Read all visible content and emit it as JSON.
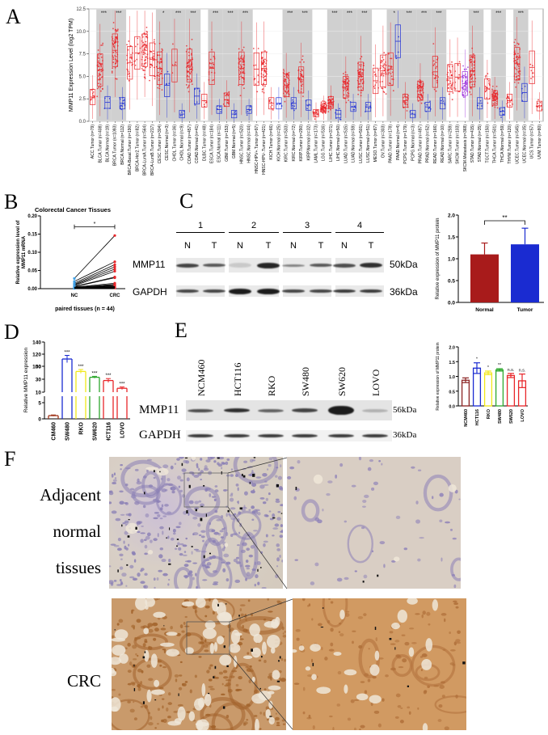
{
  "panel_labels": {
    "A": "A",
    "B": "B",
    "C": "C",
    "D": "D",
    "E": "E",
    "F": "F"
  },
  "chart_data": [
    {
      "id": "A",
      "type": "scatter",
      "title": "",
      "ylabel": "MMP11 Expression Level (log2 TPM)",
      "ylim": [
        0,
        12.5
      ],
      "yticks": [
        "0.0",
        "2.5",
        "5.0",
        "7.5",
        "10.0",
        "12.5"
      ],
      "colors": {
        "tumor": "#e8262a",
        "normal": "#1f2fd6",
        "metastasis": "#9b30d9",
        "shade": "#d0d0d0"
      },
      "categories": [
        "ACC.Tumor (n=79)",
        "BLCA.Tumor (n=408)",
        "BLCA.Normal (n=19)",
        "BRCA.Tumor (n=1093)",
        "BRCA.Normal (n=112)",
        "BRCA-Basal.Tumor (n=190)",
        "BRCA-Her2.Tumor (n=82)",
        "BRCA-LumA.Tumor (n=564)",
        "BRCA-LumB.Tumor (n=217)",
        "CESC.Tumor (n=304)",
        "CESC.Normal (n=3)",
        "CHOL.Tumor (n=36)",
        "CHOL.Normal (n=9)",
        "COAD.Tumor (n=457)",
        "COAD.Normal (n=41)",
        "DLBC.Tumor (n=48)",
        "ESCA.Tumor (n=184)",
        "ESCA.Normal (n=11)",
        "GBM.Tumor (n=153)",
        "GBM.Normal (n=5)",
        "HNSC.Tumor (n=520)",
        "HNSC.Normal (n=44)",
        "HNSC-HPV+.Tumor (n=97)",
        "HNSC-HPV-.Tumor (n=421)",
        "KICH.Tumor (n=66)",
        "KICH.Normal (n=25)",
        "KIRC.Tumor (n=533)",
        "KIRC.Normal (n=72)",
        "KIRP.Tumor (n=290)",
        "KIRP.Normal (n=32)",
        "LAML.Tumor (n=173)",
        "LGG.Tumor (n=516)",
        "LIHC.Tumor (n=371)",
        "LIHC.Normal (n=50)",
        "LUAD.Tumor (n=515)",
        "LUAD.Normal (n=59)",
        "LUSC.Tumor (n=501)",
        "LUSC.Normal (n=51)",
        "MESO.Tumor (n=87)",
        "OV.Tumor (n=303)",
        "PAAD.Tumor (n=178)",
        "PAAD.Normal (n=4)",
        "PCPG.Tumor (n=179)",
        "PCPG.Normal (n=3)",
        "PRAD.Tumor (n=497)",
        "PRAD.Normal (n=52)",
        "READ.Tumor (n=166)",
        "READ.Normal (n=10)",
        "SARC.Tumor (n=259)",
        "SKCM.Tumor (n=103)",
        "SKCM.Metastasis (n=368)",
        "STAD.Tumor (n=415)",
        "STAD.Normal (n=35)",
        "TGCT.Tumor (n=150)",
        "THCA.Tumor (n=501)",
        "THCA.Normal (n=59)",
        "THYM.Tumor (n=120)",
        "UCEC.Tumor (n=545)",
        "UCEC.Normal (n=35)",
        "UCS.Tumor (n=57)",
        "UVM.Tumor (n=80)"
      ],
      "medians": [
        2.7,
        5.7,
        2.1,
        7.9,
        2.0,
        6.5,
        7.6,
        7.9,
        6.9,
        5.9,
        4.0,
        6.2,
        0.8,
        6.2,
        2.8,
        2.3,
        5.9,
        1.3,
        2.4,
        0.8,
        5.9,
        1.3,
        5.8,
        5.9,
        2.0,
        2.0,
        4.0,
        2.0,
        4.6,
        1.8,
        0.9,
        1.5,
        2.1,
        0.8,
        3.8,
        1.6,
        5.0,
        1.6,
        4.5,
        5.6,
        5.8,
        8.9,
        2.3,
        0.8,
        3.4,
        1.6,
        5.5,
        2.0,
        4.8,
        4.9,
        4.2,
        5.6,
        2.0,
        3.6,
        2.6,
        1.1,
        2.3,
        6.4,
        3.2,
        6.0,
        1.7
      ],
      "significance": [
        {
          "index": 1,
          "label": "***"
        },
        {
          "index": 3,
          "label": "***"
        },
        {
          "index": 9,
          "label": "*"
        },
        {
          "index": 11,
          "label": "***"
        },
        {
          "index": 13,
          "label": "***"
        },
        {
          "index": 16,
          "label": "***"
        },
        {
          "index": 18,
          "label": "***"
        },
        {
          "index": 20,
          "label": "***"
        },
        {
          "index": 26,
          "label": "***"
        },
        {
          "index": 28,
          "label": "***"
        },
        {
          "index": 32,
          "label": "***"
        },
        {
          "index": 34,
          "label": "***"
        },
        {
          "index": 36,
          "label": "***"
        },
        {
          "index": 40,
          "label": "*"
        },
        {
          "index": 42,
          "label": "***"
        },
        {
          "index": 44,
          "label": "***"
        },
        {
          "index": 46,
          "label": "***"
        },
        {
          "index": 51,
          "label": "***"
        },
        {
          "index": 54,
          "label": "***"
        },
        {
          "index": 57,
          "label": "***"
        }
      ]
    },
    {
      "id": "B",
      "type": "line",
      "title": "Colorectal Cancer Tissues",
      "xlabel": "paired tissues (n = 44)",
      "ylabel": "Relative expression level of MMP11 mRNA",
      "categories": [
        "NC",
        "CRC"
      ],
      "ylim": [
        0,
        0.2
      ],
      "yticks": [
        "0.00",
        "0.05",
        "0.10",
        "0.15",
        "0.20"
      ],
      "significance": "*",
      "colors": {
        "NC": "#3fa0e6",
        "CRC": "#e8262a"
      },
      "pairs": [
        [
          0.028,
          0.146
        ],
        [
          0.02,
          0.074
        ],
        [
          0.015,
          0.066
        ],
        [
          0.012,
          0.06
        ],
        [
          0.01,
          0.054
        ],
        [
          0.008,
          0.048
        ],
        [
          0.006,
          0.032
        ],
        [
          0.005,
          0.03
        ],
        [
          0.004,
          0.015
        ],
        [
          0.003,
          0.012
        ],
        [
          0.002,
          0.01
        ],
        [
          0.002,
          0.008
        ],
        [
          0.001,
          0.006
        ],
        [
          0.001,
          0.004
        ],
        [
          0.001,
          0.003
        ],
        [
          0.001,
          0.002
        ]
      ]
    },
    {
      "id": "C-bar",
      "type": "bar",
      "ylabel": "Relative expression of MMP11 protein",
      "categories": [
        "Normal",
        "Tumor"
      ],
      "values": [
        1.1,
        1.33
      ],
      "errors": [
        0.26,
        0.37
      ],
      "colors": [
        "#a81b1b",
        "#1a2bd1"
      ],
      "ylim": [
        0,
        2.0
      ],
      "yticks": [
        "0.0",
        "0.5",
        "1.0",
        "1.5",
        "2.0"
      ],
      "significance": "**"
    },
    {
      "id": "D",
      "type": "bar",
      "ylabel": "Relative MMP11 expression",
      "categories": [
        "NCM460",
        "SW480",
        "RKO",
        "SW620",
        "HCT116",
        "LOVO"
      ],
      "values": [
        1,
        112,
        42,
        33,
        28,
        16
      ],
      "errors": [
        0.2,
        6,
        3,
        1.5,
        3,
        2
      ],
      "colors": [
        "#a0361b",
        "#1a2bd1",
        "#f2e81a",
        "#2ea82e",
        "#e8262a",
        "#e8262a"
      ],
      "yticks_upper": [
        "10",
        "30",
        "50",
        "100",
        "120",
        "140"
      ],
      "yticks_lower": [
        "0",
        "5"
      ],
      "significance": [
        "",
        "***",
        "***",
        "***",
        "***",
        "***"
      ]
    },
    {
      "id": "E-bar",
      "type": "bar",
      "ylabel": "Relative expression of MMP11 protein",
      "categories": [
        "NCM460",
        "HCT116",
        "RKO",
        "SW480",
        "SW620",
        "LOVO"
      ],
      "values": [
        0.87,
        1.28,
        1.12,
        1.22,
        1.03,
        0.85
      ],
      "errors": [
        0.08,
        0.18,
        0.06,
        0.04,
        0.07,
        0.23
      ],
      "colors": [
        "#8b2323",
        "#1a2bd1",
        "#f2e81a",
        "#2ea82e",
        "#e8262a",
        "#e8262a"
      ],
      "ylim": [
        0,
        2.0
      ],
      "yticks": [
        "0.0",
        "0.5",
        "1.0",
        "1.5",
        "2.0"
      ],
      "significance": [
        "",
        "*",
        "*",
        "**",
        "n.s.",
        "n.s."
      ]
    }
  ],
  "blot_C": {
    "groups": [
      "1",
      "2",
      "3",
      "4"
    ],
    "lanes": [
      "N",
      "T",
      "N",
      "T",
      "N",
      "T",
      "N",
      "T"
    ],
    "rows": [
      {
        "label": "MMP11",
        "kda": "50kDa"
      },
      {
        "label": "GAPDH",
        "kda": "36kDa"
      }
    ]
  },
  "blot_E": {
    "lanes": [
      "NCM460",
      "HCT116",
      "RKO",
      "SW480",
      "SW620",
      "LOVO"
    ],
    "rows": [
      {
        "label": "MMP11",
        "kda": "56kDa"
      },
      {
        "label": "GAPDH",
        "kda": "36kDa"
      }
    ]
  },
  "ihc_F": {
    "rows": [
      {
        "label_lines": [
          "Adjacent",
          "normal",
          "tissues"
        ]
      },
      {
        "label_lines": [
          "CRC"
        ]
      }
    ]
  }
}
